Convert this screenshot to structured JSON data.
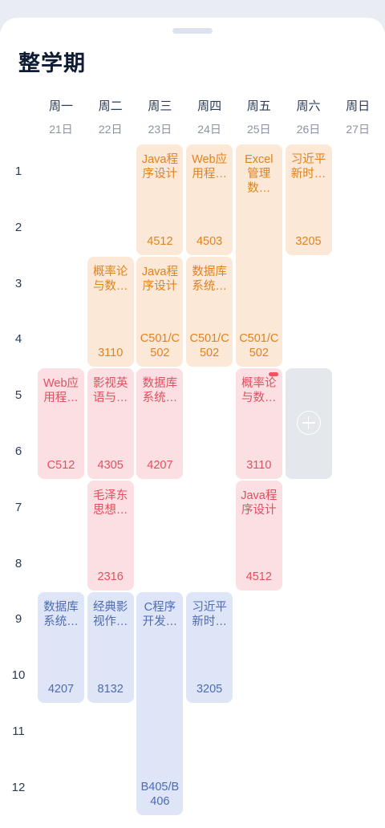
{
  "title": "整学期",
  "days": [
    {
      "name": "周一",
      "date": "21日"
    },
    {
      "name": "周二",
      "date": "22日"
    },
    {
      "name": "周三",
      "date": "23日"
    },
    {
      "name": "周四",
      "date": "24日"
    },
    {
      "name": "周五",
      "date": "25日"
    },
    {
      "name": "周六",
      "date": "26日"
    },
    {
      "name": "周日",
      "date": "27日"
    }
  ],
  "periods": [
    "1",
    "2",
    "3",
    "4",
    "5",
    "6",
    "7",
    "8",
    "9",
    "10",
    "11",
    "12"
  ],
  "colors": {
    "orange": "#e0821f",
    "pink": "#e0505f",
    "blue": "#4e6bb3"
  },
  "courses": [
    {
      "day": 3,
      "start": 1,
      "end": 2,
      "name": "Java程序设计",
      "room": "4512",
      "color": "orange"
    },
    {
      "day": 4,
      "start": 1,
      "end": 2,
      "name": "Web应用程…",
      "room": "4503",
      "color": "orange"
    },
    {
      "day": 5,
      "start": 1,
      "end": 4,
      "name": "Excel管理数…",
      "room": "C501/C502",
      "color": "orange"
    },
    {
      "day": 6,
      "start": 1,
      "end": 2,
      "name": "习近平新时…",
      "room": "3205",
      "color": "orange"
    },
    {
      "day": 2,
      "start": 3,
      "end": 4,
      "name": "概率论与数…",
      "room": "3110",
      "color": "orange"
    },
    {
      "day": 3,
      "start": 3,
      "end": 4,
      "name": "Java程序设计",
      "room": "C501/C502",
      "color": "orange"
    },
    {
      "day": 4,
      "start": 3,
      "end": 4,
      "name": "数据库系统…",
      "room": "C501/C502",
      "color": "orange"
    },
    {
      "day": 1,
      "start": 5,
      "end": 6,
      "name": "Web应用程…",
      "room": "C512",
      "color": "pink"
    },
    {
      "day": 2,
      "start": 5,
      "end": 6,
      "name": "影视英语与…",
      "room": "4305",
      "color": "pink"
    },
    {
      "day": 3,
      "start": 5,
      "end": 6,
      "name": "数据库系统…",
      "room": "4207",
      "color": "pink"
    },
    {
      "day": 5,
      "start": 5,
      "end": 6,
      "name": "概率论与数…",
      "room": "3110",
      "color": "pink",
      "badge": true
    },
    {
      "day": 2,
      "start": 7,
      "end": 8,
      "name": "毛泽东思想…",
      "room": "2316",
      "color": "pink"
    },
    {
      "day": 5,
      "start": 7,
      "end": 8,
      "name": "Java程序设计",
      "room": "4512",
      "color": "pink"
    },
    {
      "day": 1,
      "start": 9,
      "end": 10,
      "name": "数据库系统…",
      "room": "4207",
      "color": "blue"
    },
    {
      "day": 2,
      "start": 9,
      "end": 10,
      "name": "经典影视作…",
      "room": "8132",
      "color": "blue"
    },
    {
      "day": 3,
      "start": 9,
      "end": 12,
      "name": "C程序开发…",
      "room": "B405/B406",
      "color": "blue"
    },
    {
      "day": 4,
      "start": 9,
      "end": 10,
      "name": "习近平新时…",
      "room": "3205",
      "color": "blue"
    }
  ],
  "add_cell": {
    "day": 6,
    "start": 5,
    "end": 6,
    "icon": "add-circle-icon"
  }
}
